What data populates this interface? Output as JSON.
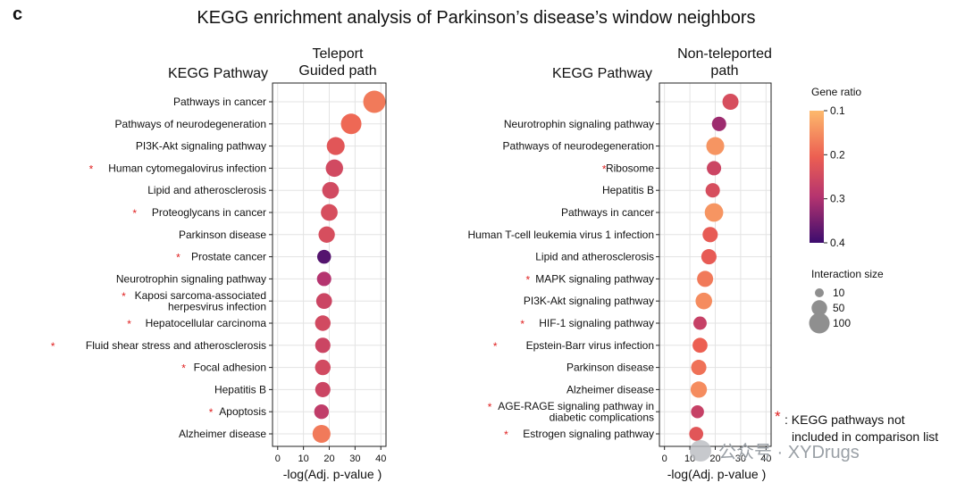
{
  "panel_letter": "c",
  "figure_title": "KEGG enrichment analysis of Parkinson’s disease’s window neighbors",
  "colors": {
    "low": "#fdb96c",
    "mid": "#d9406a",
    "high": "#3c0c6e",
    "star": "#e02020",
    "grid": "#e3e3e3"
  },
  "chart_data": [
    {
      "type": "scatter",
      "title": "Teleport\nGuided path",
      "y_header": "KEGG Pathway",
      "xlabel": "-log(Adj. p-value )",
      "xlim": [
        -2,
        42
      ],
      "xticks": [
        0,
        10,
        20,
        30,
        40
      ],
      "grid": true,
      "points": [
        {
          "label": "Pathways in cancer",
          "x": 37.5,
          "ratio": 0.17,
          "size": 100,
          "star": false
        },
        {
          "label": "Pathways of neurodegeneration",
          "x": 28.5,
          "ratio": 0.19,
          "size": 80,
          "star": false
        },
        {
          "label": "PI3K-Akt signaling pathway",
          "x": 22.5,
          "ratio": 0.22,
          "size": 55,
          "star": false
        },
        {
          "label": "Human cytomegalovirus infection",
          "x": 22.0,
          "ratio": 0.25,
          "size": 50,
          "star": true
        },
        {
          "label": "Lipid and atherosclerosis",
          "x": 20.5,
          "ratio": 0.25,
          "size": 45,
          "star": false
        },
        {
          "label": "Proteoglycans in cancer",
          "x": 20.0,
          "ratio": 0.24,
          "size": 45,
          "star": true
        },
        {
          "label": "Parkinson disease",
          "x": 19.0,
          "ratio": 0.24,
          "size": 42,
          "star": false
        },
        {
          "label": "Prostate cancer",
          "x": 18.0,
          "ratio": 0.38,
          "size": 25,
          "star": true
        },
        {
          "label": "Neurotrophin signaling pathway",
          "x": 18.0,
          "ratio": 0.3,
          "size": 28,
          "star": false
        },
        {
          "label": "Kaposi sarcoma-associated\nherpesvirus infection",
          "x": 18.0,
          "ratio": 0.26,
          "size": 38,
          "star": true
        },
        {
          "label": "Hepatocellular carcinoma",
          "x": 17.5,
          "ratio": 0.25,
          "size": 36,
          "star": true
        },
        {
          "label": "Fluid shear stress and atherosclerosis",
          "x": 17.5,
          "ratio": 0.26,
          "size": 34,
          "star": true
        },
        {
          "label": "Focal adhesion",
          "x": 17.5,
          "ratio": 0.25,
          "size": 36,
          "star": true
        },
        {
          "label": "Hepatitis B",
          "x": 17.5,
          "ratio": 0.26,
          "size": 34,
          "star": false
        },
        {
          "label": "Apoptosis",
          "x": 17.0,
          "ratio": 0.28,
          "size": 30,
          "star": true
        },
        {
          "label": "Alzheimer disease",
          "x": 17.0,
          "ratio": 0.17,
          "size": 55,
          "star": false
        }
      ]
    },
    {
      "type": "scatter",
      "title": "Non-teleported\npath",
      "y_header": "KEGG Pathway",
      "xlabel": "-log(Adj. p-value )",
      "xlim": [
        -2,
        42
      ],
      "xticks": [
        0,
        10,
        20,
        30,
        40
      ],
      "grid": true,
      "points": [
        {
          "label": "",
          "x": 26.0,
          "ratio": 0.24,
          "size": 40,
          "star": false
        },
        {
          "label": "Neurotrophin signaling pathway",
          "x": 21.5,
          "ratio": 0.32,
          "size": 28,
          "star": false
        },
        {
          "label": "Pathways of neurodegeneration",
          "x": 20.0,
          "ratio": 0.14,
          "size": 55,
          "star": false
        },
        {
          "label": "Ribosome",
          "x": 19.5,
          "ratio": 0.26,
          "size": 28,
          "star": true
        },
        {
          "label": "Hepatitis B",
          "x": 19.0,
          "ratio": 0.24,
          "size": 28,
          "star": false
        },
        {
          "label": "Pathways in cancer",
          "x": 19.5,
          "ratio": 0.14,
          "size": 60,
          "star": false
        },
        {
          "label": "Human T-cell leukemia virus 1 infection",
          "x": 18.0,
          "ratio": 0.21,
          "size": 34,
          "star": false
        },
        {
          "label": "Lipid and atherosclerosis",
          "x": 17.5,
          "ratio": 0.21,
          "size": 34,
          "star": false
        },
        {
          "label": "MAPK signaling pathway",
          "x": 16.0,
          "ratio": 0.17,
          "size": 40,
          "star": true
        },
        {
          "label": "PI3K-Akt signaling pathway",
          "x": 15.5,
          "ratio": 0.15,
          "size": 44,
          "star": false
        },
        {
          "label": "HIF-1 signaling pathway",
          "x": 14.0,
          "ratio": 0.27,
          "size": 22,
          "star": true
        },
        {
          "label": "Epstein-Barr virus infection",
          "x": 14.0,
          "ratio": 0.2,
          "size": 32,
          "star": true
        },
        {
          "label": "Parkinson disease",
          "x": 13.5,
          "ratio": 0.18,
          "size": 34,
          "star": false
        },
        {
          "label": "Alzheimer disease",
          "x": 13.5,
          "ratio": 0.15,
          "size": 42,
          "star": false
        },
        {
          "label": "AGE-RAGE signaling pathway in\ndiabetic complications",
          "x": 13.0,
          "ratio": 0.27,
          "size": 20,
          "star": true
        },
        {
          "label": "Estrogen signaling pathway",
          "x": 12.5,
          "ratio": 0.22,
          "size": 26,
          "star": true
        }
      ]
    }
  ],
  "legend": {
    "gene_ratio_title": "Gene ratio",
    "gene_ratio_ticks": [
      "0.1",
      "0.2",
      "0.3",
      "0.4"
    ],
    "interaction_title": "Interaction size",
    "interaction_items": [
      {
        "label": "10",
        "size": 10
      },
      {
        "label": "50",
        "size": 50
      },
      {
        "label": "100",
        "size": 100
      }
    ]
  },
  "footnote": {
    "star": "*",
    "line1": ": KEGG pathways not",
    "line2": "included in comparison list"
  },
  "watermark": "公众号 · XYDrugs"
}
